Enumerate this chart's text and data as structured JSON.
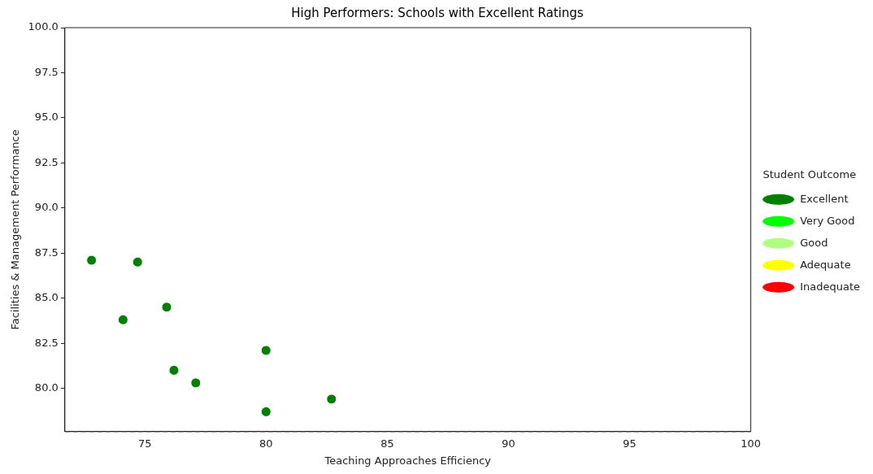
{
  "chart_data": {
    "type": "scatter",
    "title": "High Performers: Schools with Excellent Ratings",
    "xlabel": "Teaching Approaches Efficiency",
    "ylabel": "Facilities & Management Performance",
    "legend_title": "Student Outcome",
    "legend": "right",
    "marker": "circle",
    "grid": false,
    "xlim": [
      71.7,
      100
    ],
    "xticks": [
      75,
      80,
      85,
      90,
      95,
      100
    ],
    "ylim": [
      77.6,
      100
    ],
    "yticks": [
      {
        "value": 80,
        "label": "80.0"
      },
      {
        "value": 82.5,
        "label": "82.5"
      },
      {
        "value": 85,
        "label": "85.0"
      },
      {
        "value": 87.5,
        "label": "87.5"
      },
      {
        "value": 90,
        "label": "90.0"
      },
      {
        "value": 92.5,
        "label": "92.5"
      },
      {
        "value": 95,
        "label": "95.0"
      },
      {
        "value": 97.5,
        "label": "97.5"
      },
      {
        "value": 100,
        "label": "100.0"
      }
    ],
    "ref_lines": [
      {
        "axis": "y",
        "value": 77.6,
        "color": "#808080",
        "line_style": "dashed"
      }
    ],
    "series": [
      {
        "name": "Excellent",
        "color": "#008000",
        "x": [
          72.8,
          74.7,
          74.1,
          75.9,
          76.2,
          77.1,
          80.0,
          80.0,
          82.7
        ],
        "values": [
          87.1,
          87.0,
          83.8,
          84.5,
          81.0,
          80.3,
          82.1,
          78.7,
          79.4
        ]
      },
      {
        "name": "Very Good",
        "color": "#00ff00"
      },
      {
        "name": "Good",
        "color": "#b0ff80"
      },
      {
        "name": "Adequate",
        "color": "#ffff00"
      },
      {
        "name": "Inadequate",
        "color": "#ff0000"
      }
    ]
  }
}
